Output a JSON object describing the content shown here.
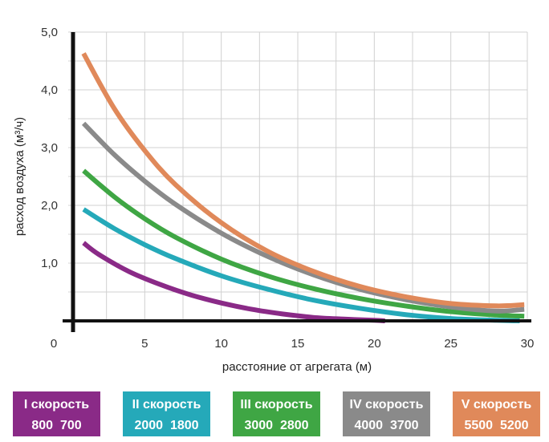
{
  "chart_data": {
    "type": "line",
    "xlabel": "расстояние от агрегата (м)",
    "ylabel": "расход воздуха (м³/ч)",
    "xlim": [
      0,
      30
    ],
    "ylim": [
      0,
      5
    ],
    "x_ticks": [
      "0",
      "5",
      "10",
      "15",
      "20",
      "25",
      "30"
    ],
    "y_ticks": [
      "1,0",
      "2,0",
      "3,0",
      "4,0",
      "5,0"
    ],
    "grid": true,
    "legend_position": "bottom",
    "series": [
      {
        "name": "I скорость",
        "legend_values": "800  700",
        "color": "#8a2a87",
        "x": [
          1,
          2,
          4,
          6,
          8,
          10,
          12,
          14,
          16,
          18,
          20,
          20.7
        ],
        "y": [
          1.35,
          1.15,
          0.85,
          0.63,
          0.45,
          0.31,
          0.2,
          0.12,
          0.06,
          0.03,
          0.01,
          0.0
        ]
      },
      {
        "name": "II скорость",
        "legend_values": "2000  1800",
        "color": "#25a9b9",
        "x": [
          1,
          3,
          5,
          7,
          10,
          13,
          16,
          19,
          22,
          25,
          28,
          29.5
        ],
        "y": [
          1.93,
          1.6,
          1.32,
          1.08,
          0.78,
          0.55,
          0.36,
          0.22,
          0.11,
          0.04,
          0.01,
          0.0
        ]
      },
      {
        "name": "III скорость",
        "legend_values": "3000  2800",
        "color": "#3fa644",
        "x": [
          1,
          3,
          5,
          7,
          10,
          13,
          16,
          19,
          22,
          25,
          28,
          29.8
        ],
        "y": [
          2.6,
          2.15,
          1.77,
          1.45,
          1.07,
          0.78,
          0.56,
          0.39,
          0.26,
          0.16,
          0.1,
          0.08
        ]
      },
      {
        "name": "IV скорость",
        "legend_values": "4000  3700",
        "color": "#8a8a8a",
        "x": [
          1,
          3,
          5,
          7,
          10,
          13,
          16,
          19,
          22,
          25,
          28,
          29.8
        ],
        "y": [
          3.42,
          2.88,
          2.42,
          2.02,
          1.52,
          1.12,
          0.8,
          0.55,
          0.37,
          0.24,
          0.17,
          0.2
        ]
      },
      {
        "name": "V скорость",
        "legend_values": "5500  5200",
        "color": "#e0895a",
        "x": [
          1,
          3,
          5,
          7,
          10,
          13,
          16,
          19,
          22,
          25,
          28,
          29.8
        ],
        "y": [
          4.63,
          3.68,
          2.95,
          2.36,
          1.7,
          1.21,
          0.86,
          0.6,
          0.42,
          0.3,
          0.26,
          0.28
        ]
      }
    ]
  }
}
